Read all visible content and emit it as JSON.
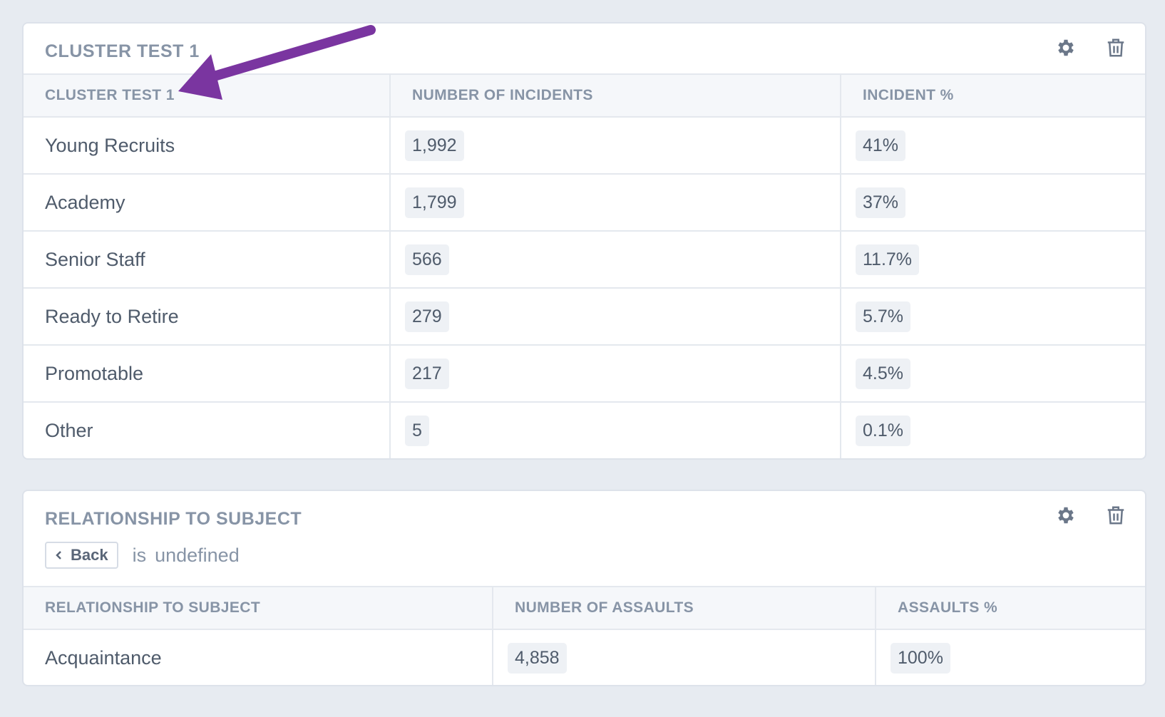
{
  "cluster_card": {
    "title": "CLUSTER TEST 1",
    "columns": [
      "CLUSTER TEST 1",
      "NUMBER OF INCIDENTS",
      "INCIDENT %"
    ],
    "rows": [
      {
        "label": "Young Recruits",
        "incidents": "1,992",
        "percent": "41%"
      },
      {
        "label": "Academy",
        "incidents": "1,799",
        "percent": "37%"
      },
      {
        "label": "Senior Staff",
        "incidents": "566",
        "percent": "11.7%"
      },
      {
        "label": "Ready to Retire",
        "incidents": "279",
        "percent": "5.7%"
      },
      {
        "label": "Promotable",
        "incidents": "217",
        "percent": "4.5%"
      },
      {
        "label": "Other",
        "incidents": "5",
        "percent": "0.1%"
      }
    ],
    "settings_icon": "gear-icon",
    "delete_icon": "trash-icon"
  },
  "relationship_card": {
    "title": "RELATIONSHIP TO SUBJECT",
    "back_label": "Back",
    "filter_is": "is",
    "filter_value": "undefined",
    "columns": [
      "RELATIONSHIP TO SUBJECT",
      "NUMBER OF ASSAULTS",
      "ASSAULTS %"
    ],
    "rows": [
      {
        "label": "Acquaintance",
        "assaults": "4,858",
        "percent": "100%"
      }
    ],
    "settings_icon": "gear-icon",
    "delete_icon": "trash-icon"
  },
  "annotation": {
    "arrow_color": "#7a35a0"
  },
  "colors": {
    "background": "#e7ebf1",
    "card": "#ffffff",
    "header_text": "#8794a6"
  }
}
